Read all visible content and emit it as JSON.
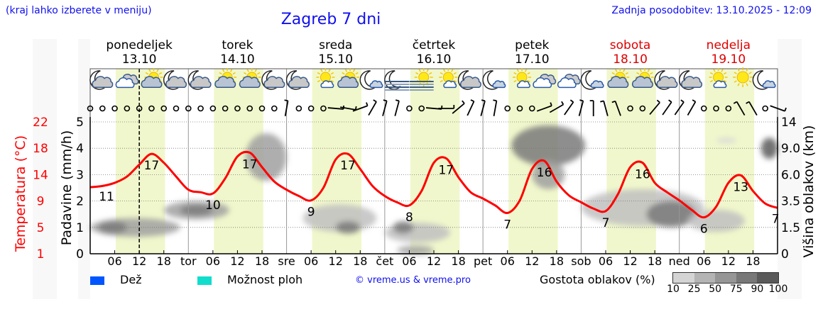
{
  "header": {
    "hint": "(kraj lahko izberete v meniju)",
    "title": "Zagreb 7 dni",
    "updated": "Zadnja posodobitev: 13.10.2025 - 12:09"
  },
  "colors": {
    "link": "#1010ee",
    "temperature": "#ff0000",
    "weekend": "#dd0000",
    "rain": "#0055ff",
    "storm": "#11ddcc",
    "daylight": "#f1f7cc"
  },
  "chart_data": {
    "type": "line",
    "days": [
      {
        "name": "ponedeljek",
        "date": "13.10",
        "short": "pon",
        "weekend": false
      },
      {
        "name": "torek",
        "date": "14.10",
        "short": "tor",
        "weekend": false
      },
      {
        "name": "sreda",
        "date": "15.10",
        "short": "sre",
        "weekend": false
      },
      {
        "name": "četrtek",
        "date": "16.10",
        "short": "čet",
        "weekend": false
      },
      {
        "name": "petek",
        "date": "17.10",
        "short": "pet",
        "weekend": false
      },
      {
        "name": "sobota",
        "date": "18.10",
        "short": "sob",
        "weekend": true
      },
      {
        "name": "nedelja",
        "date": "19.10",
        "short": "ned",
        "weekend": true
      }
    ],
    "hour_ticks": [
      "06",
      "12",
      "18"
    ],
    "current_time_hours": 12,
    "daylight_hours": [
      6.25,
      18.3
    ],
    "left_axis": {
      "label": "Padavine (mm/h)",
      "ticks": [
        0,
        1,
        2,
        3,
        4,
        5
      ],
      "range": [
        0,
        5
      ]
    },
    "temp_axis": {
      "label": "Temperatura (°C)",
      "ticks": [
        1,
        5,
        9,
        14,
        18,
        22
      ],
      "range": [
        1,
        22
      ]
    },
    "right_axis": {
      "label": "Višina oblakov (km)",
      "ticks": [
        "0",
        "1.5",
        "3.5",
        "6.0",
        "9.0",
        "14"
      ],
      "values": [
        0,
        1.5,
        3.5,
        6,
        9,
        14
      ]
    },
    "temperature": {
      "hours_step": 3,
      "values": [
        11.6,
        11.8,
        12.3,
        13.3,
        15.2,
        16.9,
        15.5,
        13.3,
        11.2,
        10.8,
        10.6,
        13.0,
        16.5,
        17.1,
        14.8,
        12.5,
        11.2,
        10.2,
        9.5,
        11.5,
        16.0,
        16.9,
        14.5,
        11.8,
        10.2,
        9.2,
        8.7,
        11.0,
        15.5,
        16.2,
        13.2,
        10.8,
        9.8,
        8.7,
        7.5,
        9.5,
        14.5,
        15.8,
        12.5,
        10.3,
        9.2,
        8.2,
        7.8,
        10.5,
        14.8,
        15.5,
        12.3,
        10.8,
        9.5,
        8.0,
        6.8,
        8.5,
        12.3,
        13.5,
        11.0,
        9.0,
        8.3
      ]
    },
    "temp_labels": [
      {
        "t": 4,
        "v": "11"
      },
      {
        "t": 15,
        "v": "17"
      },
      {
        "t": 30,
        "v": "10"
      },
      {
        "t": 39,
        "v": "17"
      },
      {
        "t": 54,
        "v": "9"
      },
      {
        "t": 63,
        "v": "17"
      },
      {
        "t": 78,
        "v": "8"
      },
      {
        "t": 87,
        "v": "17"
      },
      {
        "t": 102,
        "v": "7"
      },
      {
        "t": 111,
        "v": "16"
      },
      {
        "t": 126,
        "v": "7"
      },
      {
        "t": 135,
        "v": "16"
      },
      {
        "t": 150,
        "v": "6"
      },
      {
        "t": 159,
        "v": "13"
      },
      {
        "t": 167.5,
        "v": "7"
      }
    ],
    "clouds": [
      {
        "t0": 0,
        "t1": 22,
        "h": 1.5,
        "dh": 0.6,
        "density": 50
      },
      {
        "t0": 2,
        "t1": 9,
        "h": 1.5,
        "dh": 0.4,
        "density": 75
      },
      {
        "t0": 18,
        "t1": 34,
        "h": 2.8,
        "dh": 0.7,
        "density": 50
      },
      {
        "t0": 22,
        "t1": 30,
        "h": 2.8,
        "dh": 0.4,
        "density": 75
      },
      {
        "t0": 38,
        "t1": 48,
        "h": 8.0,
        "dh": 3.0,
        "density": 50
      },
      {
        "t0": 52,
        "t1": 70,
        "h": 2.2,
        "dh": 1.0,
        "density": 25
      },
      {
        "t0": 60,
        "t1": 66,
        "h": 1.5,
        "dh": 0.4,
        "density": 75
      },
      {
        "t0": 72,
        "t1": 88,
        "h": 1.2,
        "dh": 0.6,
        "density": 25
      },
      {
        "t0": 74,
        "t1": 79,
        "h": 1.5,
        "dh": 0.4,
        "density": 75
      },
      {
        "t0": 75,
        "t1": 84,
        "h": 0.2,
        "dh": 0.3,
        "density": 50
      },
      {
        "t0": 103,
        "t1": 121,
        "h": 9.5,
        "dh": 3.0,
        "density": 75
      },
      {
        "t0": 108,
        "t1": 116,
        "h": 6.0,
        "dh": 1.5,
        "density": 50
      },
      {
        "t0": 120,
        "t1": 150,
        "h": 3.0,
        "dh": 1.5,
        "density": 25
      },
      {
        "t0": 136,
        "t1": 148,
        "h": 2.5,
        "dh": 1.0,
        "density": 75
      },
      {
        "t0": 146,
        "t1": 160,
        "h": 2.0,
        "dh": 0.8,
        "density": 25
      },
      {
        "t0": 164,
        "t1": 168,
        "h": 9.0,
        "dh": 1.5,
        "density": 90
      },
      {
        "t0": 153,
        "t1": 158,
        "h": 10.5,
        "dh": 0.3,
        "density": 10
      }
    ],
    "weather_icons": [
      "moon-cloud",
      "cloudy",
      "sun-cloud",
      "moon-cloud",
      "moon-cloud",
      "sun-cloud",
      "sun-cloud",
      "moon-cloud",
      "moon-cloud",
      "sun-small-cloud",
      "sun-cloud",
      "moon-small-cloud",
      "moon-fog",
      "sun-fog",
      "sun-small-cloud",
      "moon-cloud",
      "moon-small-cloud",
      "sun-small-cloud",
      "cloudy",
      "cloudy",
      "moon-small-cloud",
      "sun-cloud",
      "sun-cloud",
      "moon-cloud",
      "moon-cloud",
      "sun-small-cloud",
      "sun",
      "moon-small-cloud"
    ],
    "wind_directions_deg": [
      "calm",
      "calm",
      "calm",
      "calm",
      "calm",
      "calm",
      "calm",
      "calm",
      "calm",
      "calm",
      "calm",
      "calm",
      "calm",
      "calm",
      "calm",
      "calm",
      190,
      "calm",
      "calm",
      "calm",
      275,
      280,
      250,
      210,
      195,
      195,
      "calm",
      "calm",
      275,
      270,
      230,
      205,
      195,
      190,
      "calm",
      "calm",
      "calm",
      250,
      240,
      215,
      195,
      180,
      165,
      160,
      "calm",
      "calm",
      220,
      215,
      215,
      210,
      "calm",
      "calm",
      "calm",
      150,
      150,
      "calm",
      290
    ]
  },
  "legend": {
    "rain": "Dež",
    "storm": "Možnost ploh",
    "copyright": "© vreme.us & vreme.pro",
    "cloud_density_title": "Gostota oblakov (%)",
    "cloud_density_levels": [
      "10",
      "25",
      "50",
      "75",
      "90",
      "100"
    ],
    "cloud_density_colors": [
      "#d4d4d4",
      "#b4b4b4",
      "#969696",
      "#787878",
      "#5a5a5a"
    ]
  }
}
